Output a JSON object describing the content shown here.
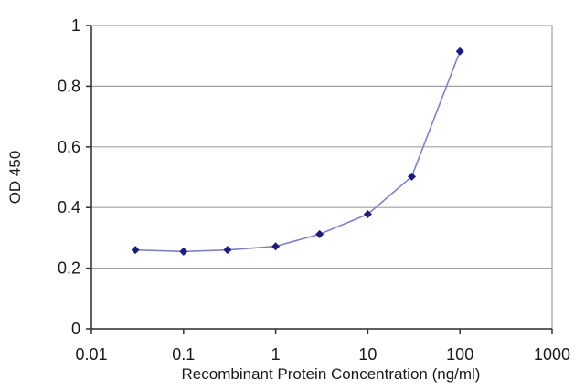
{
  "chart_data": {
    "type": "line",
    "title": "",
    "xlabel": "Recombinant Protein Concentration (ng/ml)",
    "ylabel": "OD 450",
    "x_scale": "log",
    "xlim": [
      0.01,
      1000
    ],
    "ylim": [
      0,
      1
    ],
    "x_ticks": [
      {
        "value": 0.01,
        "label": "0.01"
      },
      {
        "value": 0.1,
        "label": "0.1"
      },
      {
        "value": 1,
        "label": "1"
      },
      {
        "value": 10,
        "label": "10"
      },
      {
        "value": 100,
        "label": "100"
      },
      {
        "value": 1000,
        "label": "1000"
      }
    ],
    "y_ticks": [
      {
        "value": 0,
        "label": "0"
      },
      {
        "value": 0.2,
        "label": "0.2"
      },
      {
        "value": 0.4,
        "label": "0.4"
      },
      {
        "value": 0.6,
        "label": "0.6"
      },
      {
        "value": 0.8,
        "label": "0.8"
      },
      {
        "value": 1,
        "label": "1"
      }
    ],
    "grid": {
      "horizontal": true,
      "vertical": false
    },
    "series": [
      {
        "x": [
          0.03,
          0.1,
          0.3,
          1,
          3,
          10,
          30,
          100
        ],
        "y": [
          0.26,
          0.255,
          0.26,
          0.272,
          0.312,
          0.378,
          0.502,
          0.915
        ]
      }
    ],
    "colors": {
      "line": "#7c80d8",
      "marker": "#1a1a8c",
      "grid": "#a0a0a0",
      "frame": "#a0a0a0",
      "axis": "#303030"
    }
  }
}
